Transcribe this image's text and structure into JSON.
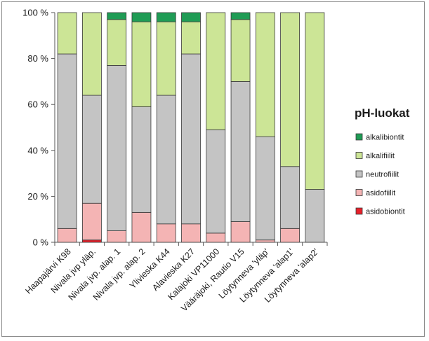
{
  "chart_data": {
    "type": "bar",
    "stacked": "percent",
    "categories": [
      "Haapajärvi K98",
      "Nivala jvp yläp.",
      "Nivala jvp. alap. 1",
      "Nivala jvp. alap. 2",
      "Ylivieska K44",
      "Alavieska K27",
      "Kalajoki VP11000",
      "Vääräjoki, Rautio V15",
      "Löytynneva 'yläp'",
      "Löytynneva 'alap1'",
      "Löytynneva 'alap2'"
    ],
    "series": [
      {
        "name": "asidobiontit",
        "color": "#e8202a",
        "values": [
          0,
          1,
          0,
          0,
          0,
          0,
          0,
          0,
          0,
          0,
          0
        ]
      },
      {
        "name": "asidofiilit",
        "color": "#f4b4b4",
        "values": [
          6,
          16,
          5,
          13,
          8,
          8,
          4,
          9,
          1,
          6,
          0
        ]
      },
      {
        "name": "neutrofiilit",
        "color": "#c4c4c4",
        "values": [
          76,
          47,
          72,
          46,
          56,
          74,
          45,
          61,
          45,
          27,
          23
        ]
      },
      {
        "name": "alkalifiilit",
        "color": "#cce596",
        "values": [
          18,
          36,
          20,
          37,
          32,
          14,
          51,
          27,
          54,
          67,
          77
        ]
      },
      {
        "name": "alkalibiontit",
        "color": "#1f9c55",
        "values": [
          0,
          0,
          3,
          4,
          4,
          4,
          0,
          3,
          0,
          0,
          0
        ]
      }
    ],
    "ylim": [
      0,
      100
    ],
    "yticks": [
      "0 %",
      "20 %",
      "40 %",
      "60 %",
      "80 %",
      "100 %"
    ],
    "legend_title": "pH-luokat",
    "legend_order": [
      "alkalibiontit",
      "alkalifiilit",
      "neutrofiilit",
      "asidofiilit",
      "asidobiontit"
    ],
    "legend_position": "right",
    "grid": false
  }
}
